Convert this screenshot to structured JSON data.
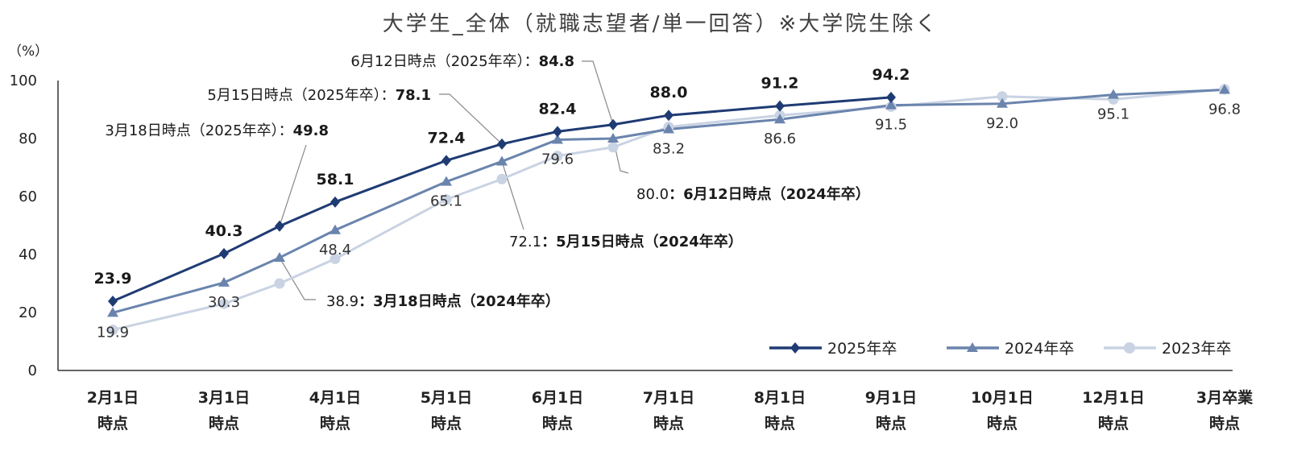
{
  "chart_data": {
    "type": "line",
    "title": "大学生_全体（就職志望者/単一回答）※大学院生除く",
    "ylabel": "（%）",
    "ylim": [
      0,
      100
    ],
    "yticks": [
      0,
      20,
      40,
      60,
      80,
      100
    ],
    "categories": [
      "2月1日\n時点",
      "3月1日\n時点",
      "4月1日\n時点",
      "5月1日\n時点",
      "6月1日\n時点",
      "7月1日\n時点",
      "8月1日\n時点",
      "9月1日\n時点",
      "10月1日\n時点",
      "12月1日\n時点",
      "3月卒業\n時点"
    ],
    "x": [
      0,
      1,
      2,
      3,
      4,
      5,
      6,
      7,
      8,
      9,
      10
    ],
    "legend": {
      "placement": "bottom-right"
    },
    "series": [
      {
        "name": "2025年卒",
        "color": "#1f3b73",
        "marker": "diamond",
        "points": [
          {
            "x": 0,
            "y": 23.9,
            "label": "23.9"
          },
          {
            "x": 1,
            "y": 40.3,
            "label": "40.3"
          },
          {
            "x": 1.5,
            "y": 49.8
          },
          {
            "x": 2,
            "y": 58.1,
            "label": "58.1"
          },
          {
            "x": 3,
            "y": 72.4,
            "label": "72.4"
          },
          {
            "x": 3.5,
            "y": 78.1
          },
          {
            "x": 4,
            "y": 82.4,
            "label": "82.4"
          },
          {
            "x": 4.5,
            "y": 84.8
          },
          {
            "x": 5,
            "y": 88.0,
            "label": "88.0"
          },
          {
            "x": 6,
            "y": 91.2,
            "label": "91.2"
          },
          {
            "x": 7,
            "y": 94.2,
            "label": "94.2"
          }
        ]
      },
      {
        "name": "2024年卒",
        "color": "#6a84ad",
        "marker": "triangle",
        "points": [
          {
            "x": 0,
            "y": 19.9
          },
          {
            "x": 1,
            "y": 30.3
          },
          {
            "x": 1.5,
            "y": 38.9
          },
          {
            "x": 2,
            "y": 48.4
          },
          {
            "x": 3,
            "y": 65.1
          },
          {
            "x": 3.5,
            "y": 72.1
          },
          {
            "x": 4,
            "y": 79.6
          },
          {
            "x": 4.5,
            "y": 80.0
          },
          {
            "x": 5,
            "y": 83.2
          },
          {
            "x": 6,
            "y": 86.6
          },
          {
            "x": 7,
            "y": 91.5
          },
          {
            "x": 8,
            "y": 92.0
          },
          {
            "x": 9,
            "y": 95.1
          },
          {
            "x": 10,
            "y": 96.8
          }
        ]
      },
      {
        "name": "2023年卒",
        "color": "#c9d3e3",
        "marker": "circle",
        "points": [
          {
            "x": 0,
            "y": 14
          },
          {
            "x": 1,
            "y": 23
          },
          {
            "x": 1.5,
            "y": 30
          },
          {
            "x": 2,
            "y": 38.5
          },
          {
            "x": 3,
            "y": 59
          },
          {
            "x": 3.5,
            "y": 66
          },
          {
            "x": 4,
            "y": 74
          },
          {
            "x": 4.5,
            "y": 77
          },
          {
            "x": 5,
            "y": 84
          },
          {
            "x": 6,
            "y": 88
          },
          {
            "x": 7,
            "y": 91
          },
          {
            "x": 8,
            "y": 94.5
          },
          {
            "x": 9,
            "y": 93.5
          },
          {
            "x": 10,
            "y": 97
          }
        ]
      }
    ],
    "value_labels_2024": [
      {
        "x": 0,
        "text": "19.9"
      },
      {
        "x": 1,
        "text": "30.3"
      },
      {
        "x": 2,
        "text": "48.4"
      },
      {
        "x": 3,
        "text": "65.1"
      },
      {
        "x": 4,
        "text": "79.6"
      },
      {
        "x": 5,
        "text": "83.2"
      },
      {
        "x": 6,
        "text": "86.6"
      },
      {
        "x": 7,
        "text": "91.5"
      },
      {
        "x": 8,
        "text": "92.0"
      },
      {
        "x": 9,
        "text": "95.1"
      },
      {
        "x": 10,
        "text": "96.8"
      }
    ],
    "annotations": [
      {
        "series": "2025年卒",
        "x": 1.5,
        "y": 49.8,
        "prefix": "3月18日時点（2025年卒）：",
        "value": "49.8"
      },
      {
        "series": "2025年卒",
        "x": 3.5,
        "y": 78.1,
        "prefix": "5月15日時点（2025年卒）：",
        "value": "78.1"
      },
      {
        "series": "2025年卒",
        "x": 4.5,
        "y": 84.8,
        "prefix": "6月12日時点（2025年卒）：",
        "value": "84.8"
      },
      {
        "series": "2024年卒",
        "x": 1.5,
        "y": 38.9,
        "value": "38.9",
        "suffix": "：3月18日時点（2024年卒）"
      },
      {
        "series": "2024年卒",
        "x": 3.5,
        "y": 72.1,
        "value": "72.1",
        "suffix": "：5月15日時点（2024年卒）"
      },
      {
        "series": "2024年卒",
        "x": 4.5,
        "y": 80.0,
        "value": "80.0",
        "suffix": "：6月12日時点（2024年卒）"
      }
    ]
  }
}
